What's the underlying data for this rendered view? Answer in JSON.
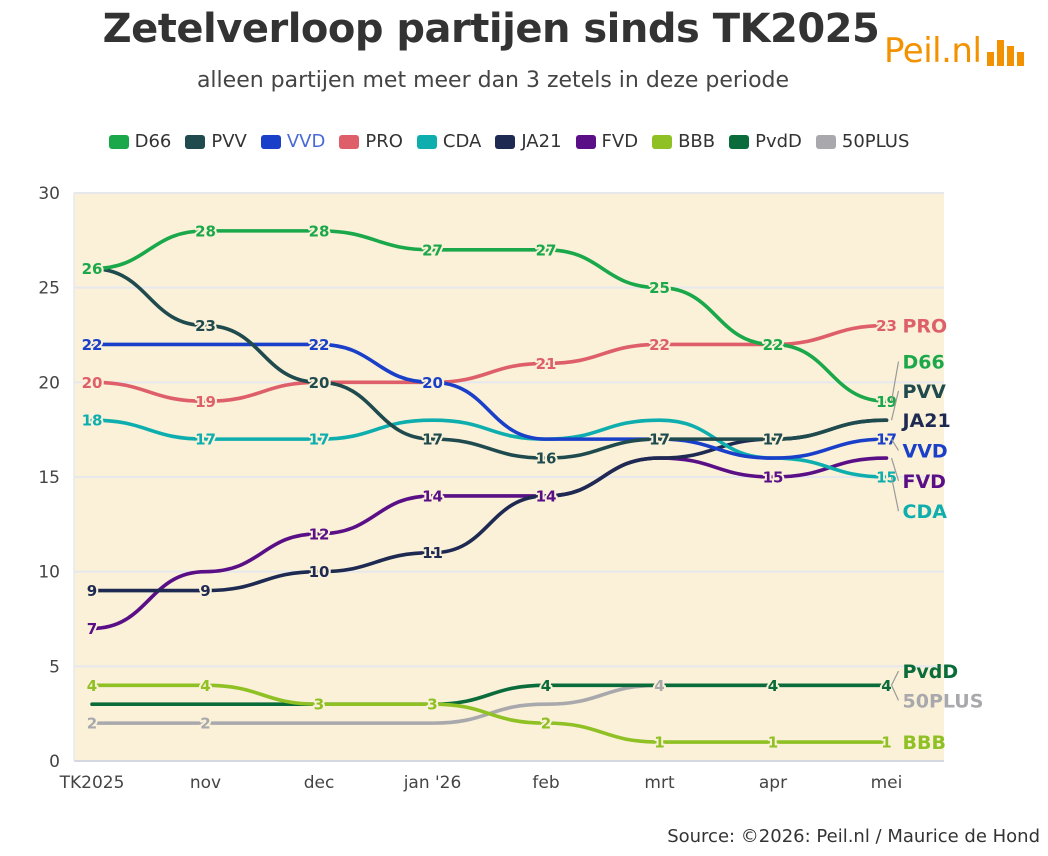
{
  "header": {
    "title": "Zetelverloop partijen sinds TK2025",
    "subtitle": "alleen partijen met meer dan 3 zetels in deze periode"
  },
  "logo": {
    "text": "Peil.nl",
    "color": "#f39200"
  },
  "footer": {
    "source": "Source: ©2026: Peil.nl / Maurice de Hond"
  },
  "chart_data": {
    "type": "line",
    "categories": [
      "TK2025",
      "nov",
      "dec",
      "jan '26",
      "feb",
      "mrt",
      "apr",
      "mei"
    ],
    "ylim": [
      0,
      30
    ],
    "yticks": [
      0,
      5,
      10,
      15,
      20,
      25,
      30
    ],
    "grid": true,
    "plot_background": "#faf1d8",
    "legend_position": "top",
    "series": [
      {
        "name": "D66",
        "color": "#1ba84a",
        "values": [
          26,
          28,
          28,
          27,
          27,
          25,
          22,
          19
        ]
      },
      {
        "name": "PVV",
        "color": "#1f4a4e",
        "values": [
          26,
          23,
          20,
          17,
          16,
          17,
          17,
          18
        ]
      },
      {
        "name": "VVD",
        "color": "#1a3fc8",
        "legend_color": "#4a69d6",
        "values": [
          22,
          22,
          22,
          20,
          17,
          17,
          16,
          17
        ]
      },
      {
        "name": "PRO",
        "color": "#de5f69",
        "values": [
          20,
          19,
          20,
          20,
          21,
          22,
          22,
          23
        ]
      },
      {
        "name": "CDA",
        "color": "#0eaeae",
        "values": [
          18,
          17,
          17,
          18,
          17,
          18,
          16,
          15
        ]
      },
      {
        "name": "JA21",
        "color": "#1e2a52",
        "values": [
          9,
          9,
          10,
          11,
          14,
          16,
          17,
          18
        ]
      },
      {
        "name": "FVD",
        "color": "#5a0f86",
        "values": [
          7,
          10,
          12,
          14,
          14,
          16,
          15,
          16
        ]
      },
      {
        "name": "BBB",
        "color": "#8fc024",
        "values": [
          4,
          4,
          3,
          3,
          2,
          1,
          1,
          1
        ]
      },
      {
        "name": "PvdD",
        "color": "#0a6c3a",
        "values": [
          3,
          3,
          3,
          3,
          4,
          4,
          4,
          4
        ]
      },
      {
        "name": "50PLUS",
        "color": "#a9a9ad",
        "values": [
          2,
          2,
          2,
          2,
          3,
          4,
          4,
          4
        ]
      }
    ],
    "point_labels": [
      {
        "series": "D66",
        "points": [
          [
            0,
            "26"
          ],
          [
            1,
            "28"
          ],
          [
            2,
            "28"
          ],
          [
            3,
            "27"
          ],
          [
            4,
            "27"
          ],
          [
            5,
            "25"
          ],
          [
            6,
            "22"
          ],
          [
            7,
            "19"
          ]
        ]
      },
      {
        "series": "PVV",
        "points": [
          [
            1,
            "23"
          ],
          [
            2,
            "20"
          ],
          [
            3,
            "17"
          ],
          [
            4,
            "16"
          ],
          [
            5,
            "17"
          ],
          [
            6,
            "17"
          ]
        ]
      },
      {
        "series": "VVD",
        "points": [
          [
            0,
            "22"
          ],
          [
            2,
            "22"
          ],
          [
            3,
            "20"
          ],
          [
            7,
            "17"
          ]
        ]
      },
      {
        "series": "PRO",
        "points": [
          [
            0,
            "20"
          ],
          [
            1,
            "19"
          ],
          [
            4,
            "21"
          ],
          [
            5,
            "22"
          ],
          [
            7,
            "23"
          ]
        ]
      },
      {
        "series": "CDA",
        "points": [
          [
            0,
            "18"
          ],
          [
            1,
            "17"
          ],
          [
            2,
            "17"
          ],
          [
            7,
            "15"
          ]
        ]
      },
      {
        "series": "JA21",
        "points": [
          [
            0,
            "9"
          ],
          [
            1,
            "9"
          ],
          [
            2,
            "10"
          ],
          [
            3,
            "11"
          ]
        ]
      },
      {
        "series": "FVD",
        "points": [
          [
            0,
            "7"
          ],
          [
            2,
            "12"
          ],
          [
            3,
            "14"
          ],
          [
            4,
            "14"
          ],
          [
            6,
            "15"
          ]
        ]
      },
      {
        "series": "BBB",
        "points": [
          [
            0,
            "4"
          ],
          [
            1,
            "4"
          ],
          [
            2,
            "3"
          ],
          [
            3,
            "3"
          ],
          [
            4,
            "2"
          ],
          [
            5,
            "1"
          ],
          [
            6,
            "1"
          ],
          [
            7,
            "1"
          ]
        ]
      },
      {
        "series": "PvdD",
        "points": [
          [
            4,
            "4"
          ],
          [
            6,
            "4"
          ],
          [
            7,
            "4"
          ]
        ]
      },
      {
        "series": "50PLUS",
        "points": [
          [
            0,
            "2"
          ],
          [
            1,
            "2"
          ],
          [
            5,
            "4"
          ]
        ]
      }
    ],
    "end_labels": [
      {
        "text": "PRO",
        "series": "PRO",
        "at": 23
      },
      {
        "text": "D66",
        "series": "D66",
        "at": 21.1
      },
      {
        "text": "PVV",
        "series": "PVV",
        "at": 19.55
      },
      {
        "text": "JA21",
        "series": "JA21",
        "at": 18.0
      },
      {
        "text": "VVD",
        "series": "VVD",
        "at": 16.4
      },
      {
        "text": "FVD",
        "series": "FVD",
        "at": 14.8
      },
      {
        "text": "CDA",
        "series": "CDA",
        "at": 13.2
      },
      {
        "text": "PvdD",
        "series": "PvdD",
        "at": 4.75
      },
      {
        "text": "50PLUS",
        "series": "50PLUS",
        "at": 3.2
      },
      {
        "text": "BBB",
        "series": "BBB",
        "at": 1
      }
    ]
  }
}
